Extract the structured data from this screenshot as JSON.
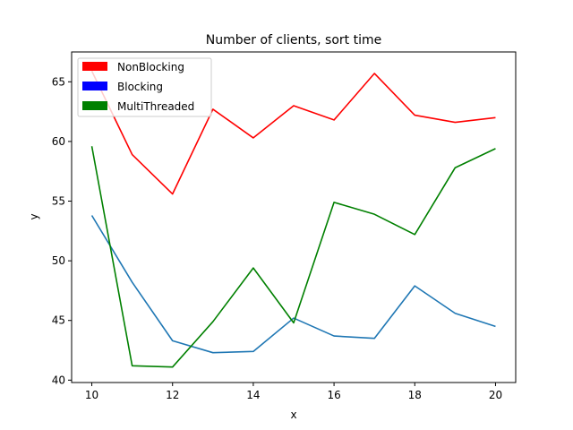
{
  "chart_data": {
    "type": "line",
    "title": "Number of clients, sort time",
    "xlabel": "x",
    "ylabel": "y",
    "xlim": [
      9.5,
      20.5
    ],
    "ylim": [
      39.8,
      67.5
    ],
    "xticks": [
      10,
      12,
      14,
      16,
      18,
      20
    ],
    "yticks": [
      40,
      45,
      50,
      55,
      60,
      65
    ],
    "legend_location": "top-left",
    "grid": false,
    "x": [
      10,
      11,
      12,
      13,
      14,
      15,
      16,
      17,
      18,
      19,
      20
    ],
    "series": [
      {
        "name": "NonBlocking",
        "color": "#ff0000",
        "values": [
          65.9,
          58.9,
          55.6,
          62.7,
          60.3,
          63.0,
          61.8,
          65.7,
          62.2,
          61.6,
          62.0
        ]
      },
      {
        "name": "Blocking",
        "color": "#1f77b4",
        "legend_color": "#0000ff",
        "values": [
          53.8,
          48.2,
          43.3,
          42.3,
          42.4,
          45.2,
          43.7,
          43.5,
          47.9,
          45.6,
          44.5
        ]
      },
      {
        "name": "MultiThreaded",
        "color": "#008000",
        "values": [
          59.6,
          41.2,
          41.1,
          44.9,
          49.4,
          44.8,
          54.9,
          53.9,
          52.2,
          57.8,
          59.4
        ]
      }
    ]
  }
}
